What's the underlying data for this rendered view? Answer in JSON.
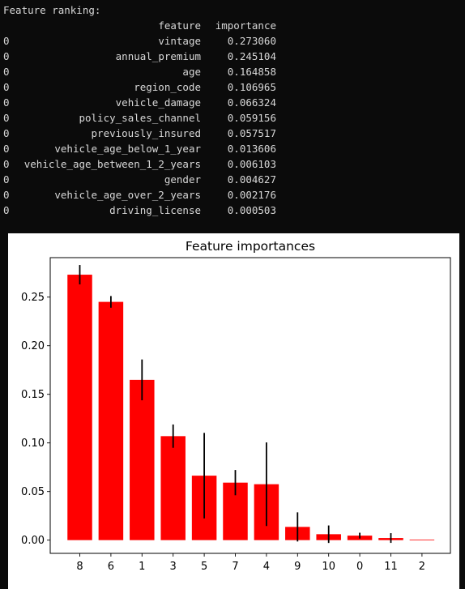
{
  "console": {
    "heading": "Feature ranking:",
    "header": {
      "index": "",
      "feature": "feature",
      "importance": "importance"
    },
    "rows": [
      {
        "index": "0",
        "feature": "vintage",
        "importance": "0.273060"
      },
      {
        "index": "0",
        "feature": "annual_premium",
        "importance": "0.245104"
      },
      {
        "index": "0",
        "feature": "age",
        "importance": "0.164858"
      },
      {
        "index": "0",
        "feature": "region_code",
        "importance": "0.106965"
      },
      {
        "index": "0",
        "feature": "vehicle_damage",
        "importance": "0.066324"
      },
      {
        "index": "0",
        "feature": "policy_sales_channel",
        "importance": "0.059156"
      },
      {
        "index": "0",
        "feature": "previously_insured",
        "importance": "0.057517"
      },
      {
        "index": "0",
        "feature": "vehicle_age_below_1_year",
        "importance": "0.013606"
      },
      {
        "index": "0",
        "feature": "vehicle_age_between_1_2_years",
        "importance": "0.006103"
      },
      {
        "index": "0",
        "feature": "gender",
        "importance": "0.004627"
      },
      {
        "index": "0",
        "feature": "vehicle_age_over_2_years",
        "importance": "0.002176"
      },
      {
        "index": "0",
        "feature": "driving_license",
        "importance": "0.000503"
      }
    ]
  },
  "chart_data": {
    "type": "bar",
    "title": "Feature importances",
    "xlabel": "",
    "ylabel": "",
    "categories": [
      "8",
      "6",
      "1",
      "3",
      "5",
      "7",
      "4",
      "9",
      "10",
      "0",
      "11",
      "2"
    ],
    "values": [
      0.27306,
      0.245104,
      0.164858,
      0.106965,
      0.066324,
      0.059156,
      0.057517,
      0.013606,
      0.006103,
      0.004627,
      0.002176,
      0.000503
    ],
    "errors": [
      0.01,
      0.006,
      0.021,
      0.012,
      0.044,
      0.013,
      0.043,
      0.015,
      0.009,
      0.003,
      0.005,
      0.0
    ],
    "yticks": [
      "0.00",
      "0.05",
      "0.10",
      "0.15",
      "0.20",
      "0.25"
    ],
    "ylim": [
      -0.0136,
      0.2906
    ],
    "bar_color": "#ff0000",
    "error_color": "#000000",
    "grid": false,
    "legend": "none"
  }
}
